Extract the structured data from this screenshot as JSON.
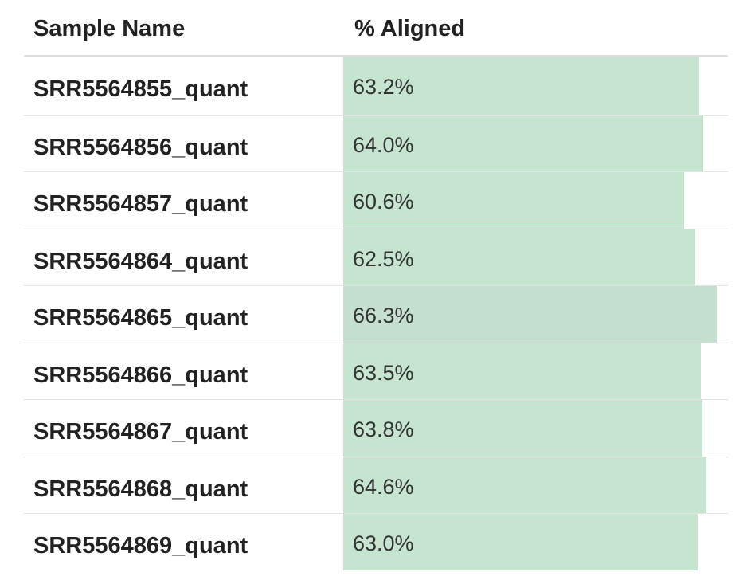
{
  "table": {
    "columns": [
      "Sample Name",
      "% Aligned"
    ],
    "rows": [
      {
        "sample": "SRR5564855_quant",
        "aligned_label": "63.2%",
        "aligned": 63.2
      },
      {
        "sample": "SRR5564856_quant",
        "aligned_label": "64.0%",
        "aligned": 64.0
      },
      {
        "sample": "SRR5564857_quant",
        "aligned_label": "60.6%",
        "aligned": 60.6
      },
      {
        "sample": "SRR5564864_quant",
        "aligned_label": "62.5%",
        "aligned": 62.5
      },
      {
        "sample": "SRR5564865_quant",
        "aligned_label": "66.3%",
        "aligned": 66.3
      },
      {
        "sample": "SRR5564866_quant",
        "aligned_label": "63.5%",
        "aligned": 63.5
      },
      {
        "sample": "SRR5564867_quant",
        "aligned_label": "63.8%",
        "aligned": 63.8
      },
      {
        "sample": "SRR5564868_quant",
        "aligned_label": "64.6%",
        "aligned": 64.6
      },
      {
        "sample": "SRR5564869_quant",
        "aligned_label": "63.0%",
        "aligned": 63.0
      }
    ]
  },
  "colors": {
    "bar": "#c6e5d0",
    "bar_max": "#c5e0d0"
  }
}
